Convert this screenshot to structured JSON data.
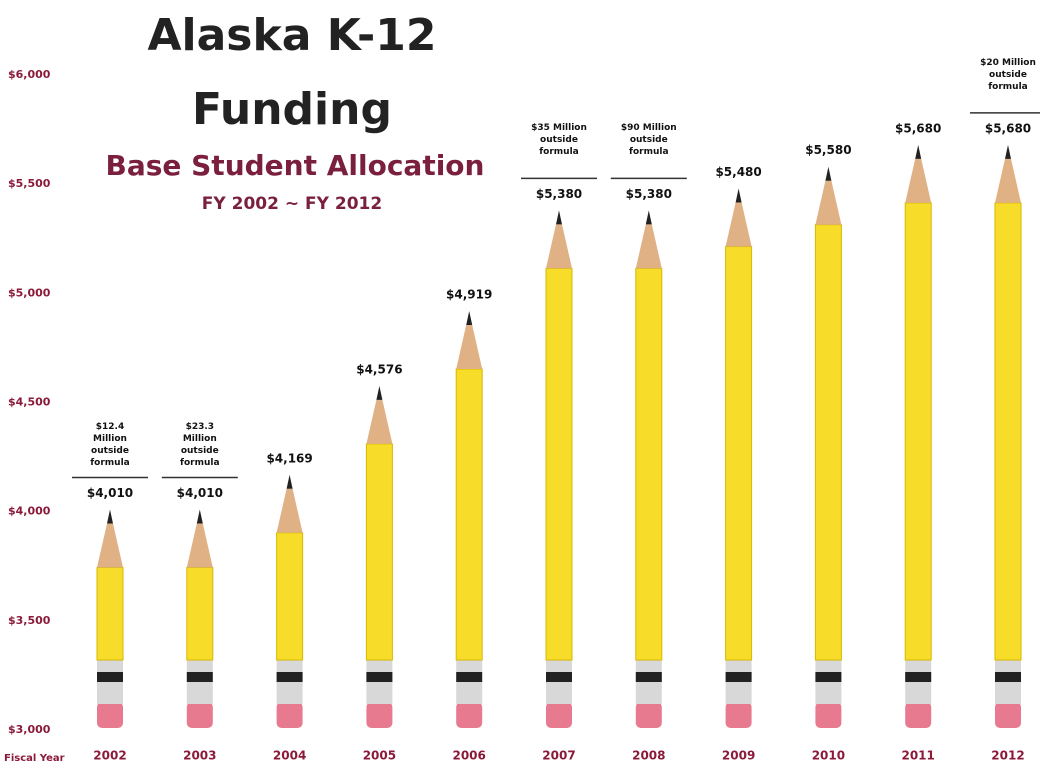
{
  "chart_data": {
    "type": "pencil-bar",
    "title": "Alaska K-12 Funding",
    "subtitle": "Base Student Allocation",
    "period": "FY 2002 ~ FY 2012",
    "x_label": "Fiscal Year",
    "categories": [
      "2002",
      "2003",
      "2004",
      "2005",
      "2006",
      "2007",
      "2008",
      "2009",
      "2010",
      "2011",
      "2012"
    ],
    "values": [
      4010,
      4010,
      4169,
      4576,
      4919,
      5380,
      5380,
      5480,
      5580,
      5680,
      5680
    ],
    "value_labels": [
      "$4,010",
      "$4,010",
      "$4,169",
      "$4,576",
      "$4,919",
      "$5,380",
      "$5,380",
      "$5,480",
      "$5,580",
      "$5,680",
      "$5,680"
    ],
    "annotations": [
      "$12.4 Million outside formula",
      "$23.3 Million outside formula",
      null,
      null,
      null,
      "$35 Million outside formula",
      "$90 Million outside formula",
      null,
      null,
      null,
      "$20 Million outside formula"
    ],
    "color": "#f7dc2a",
    "ylim": [
      3000,
      6000
    ],
    "yticks": [
      {
        "value": 3000,
        "label": "$3,000"
      },
      {
        "value": 3500,
        "label": "$3,500"
      },
      {
        "value": 4000,
        "label": "$4,000"
      },
      {
        "value": 4500,
        "label": "$4,500"
      },
      {
        "value": 5000,
        "label": "$5,000"
      },
      {
        "value": 5500,
        "label": "$5,500"
      },
      {
        "value": 6000,
        "label": "$6,000"
      }
    ],
    "grid": false
  }
}
